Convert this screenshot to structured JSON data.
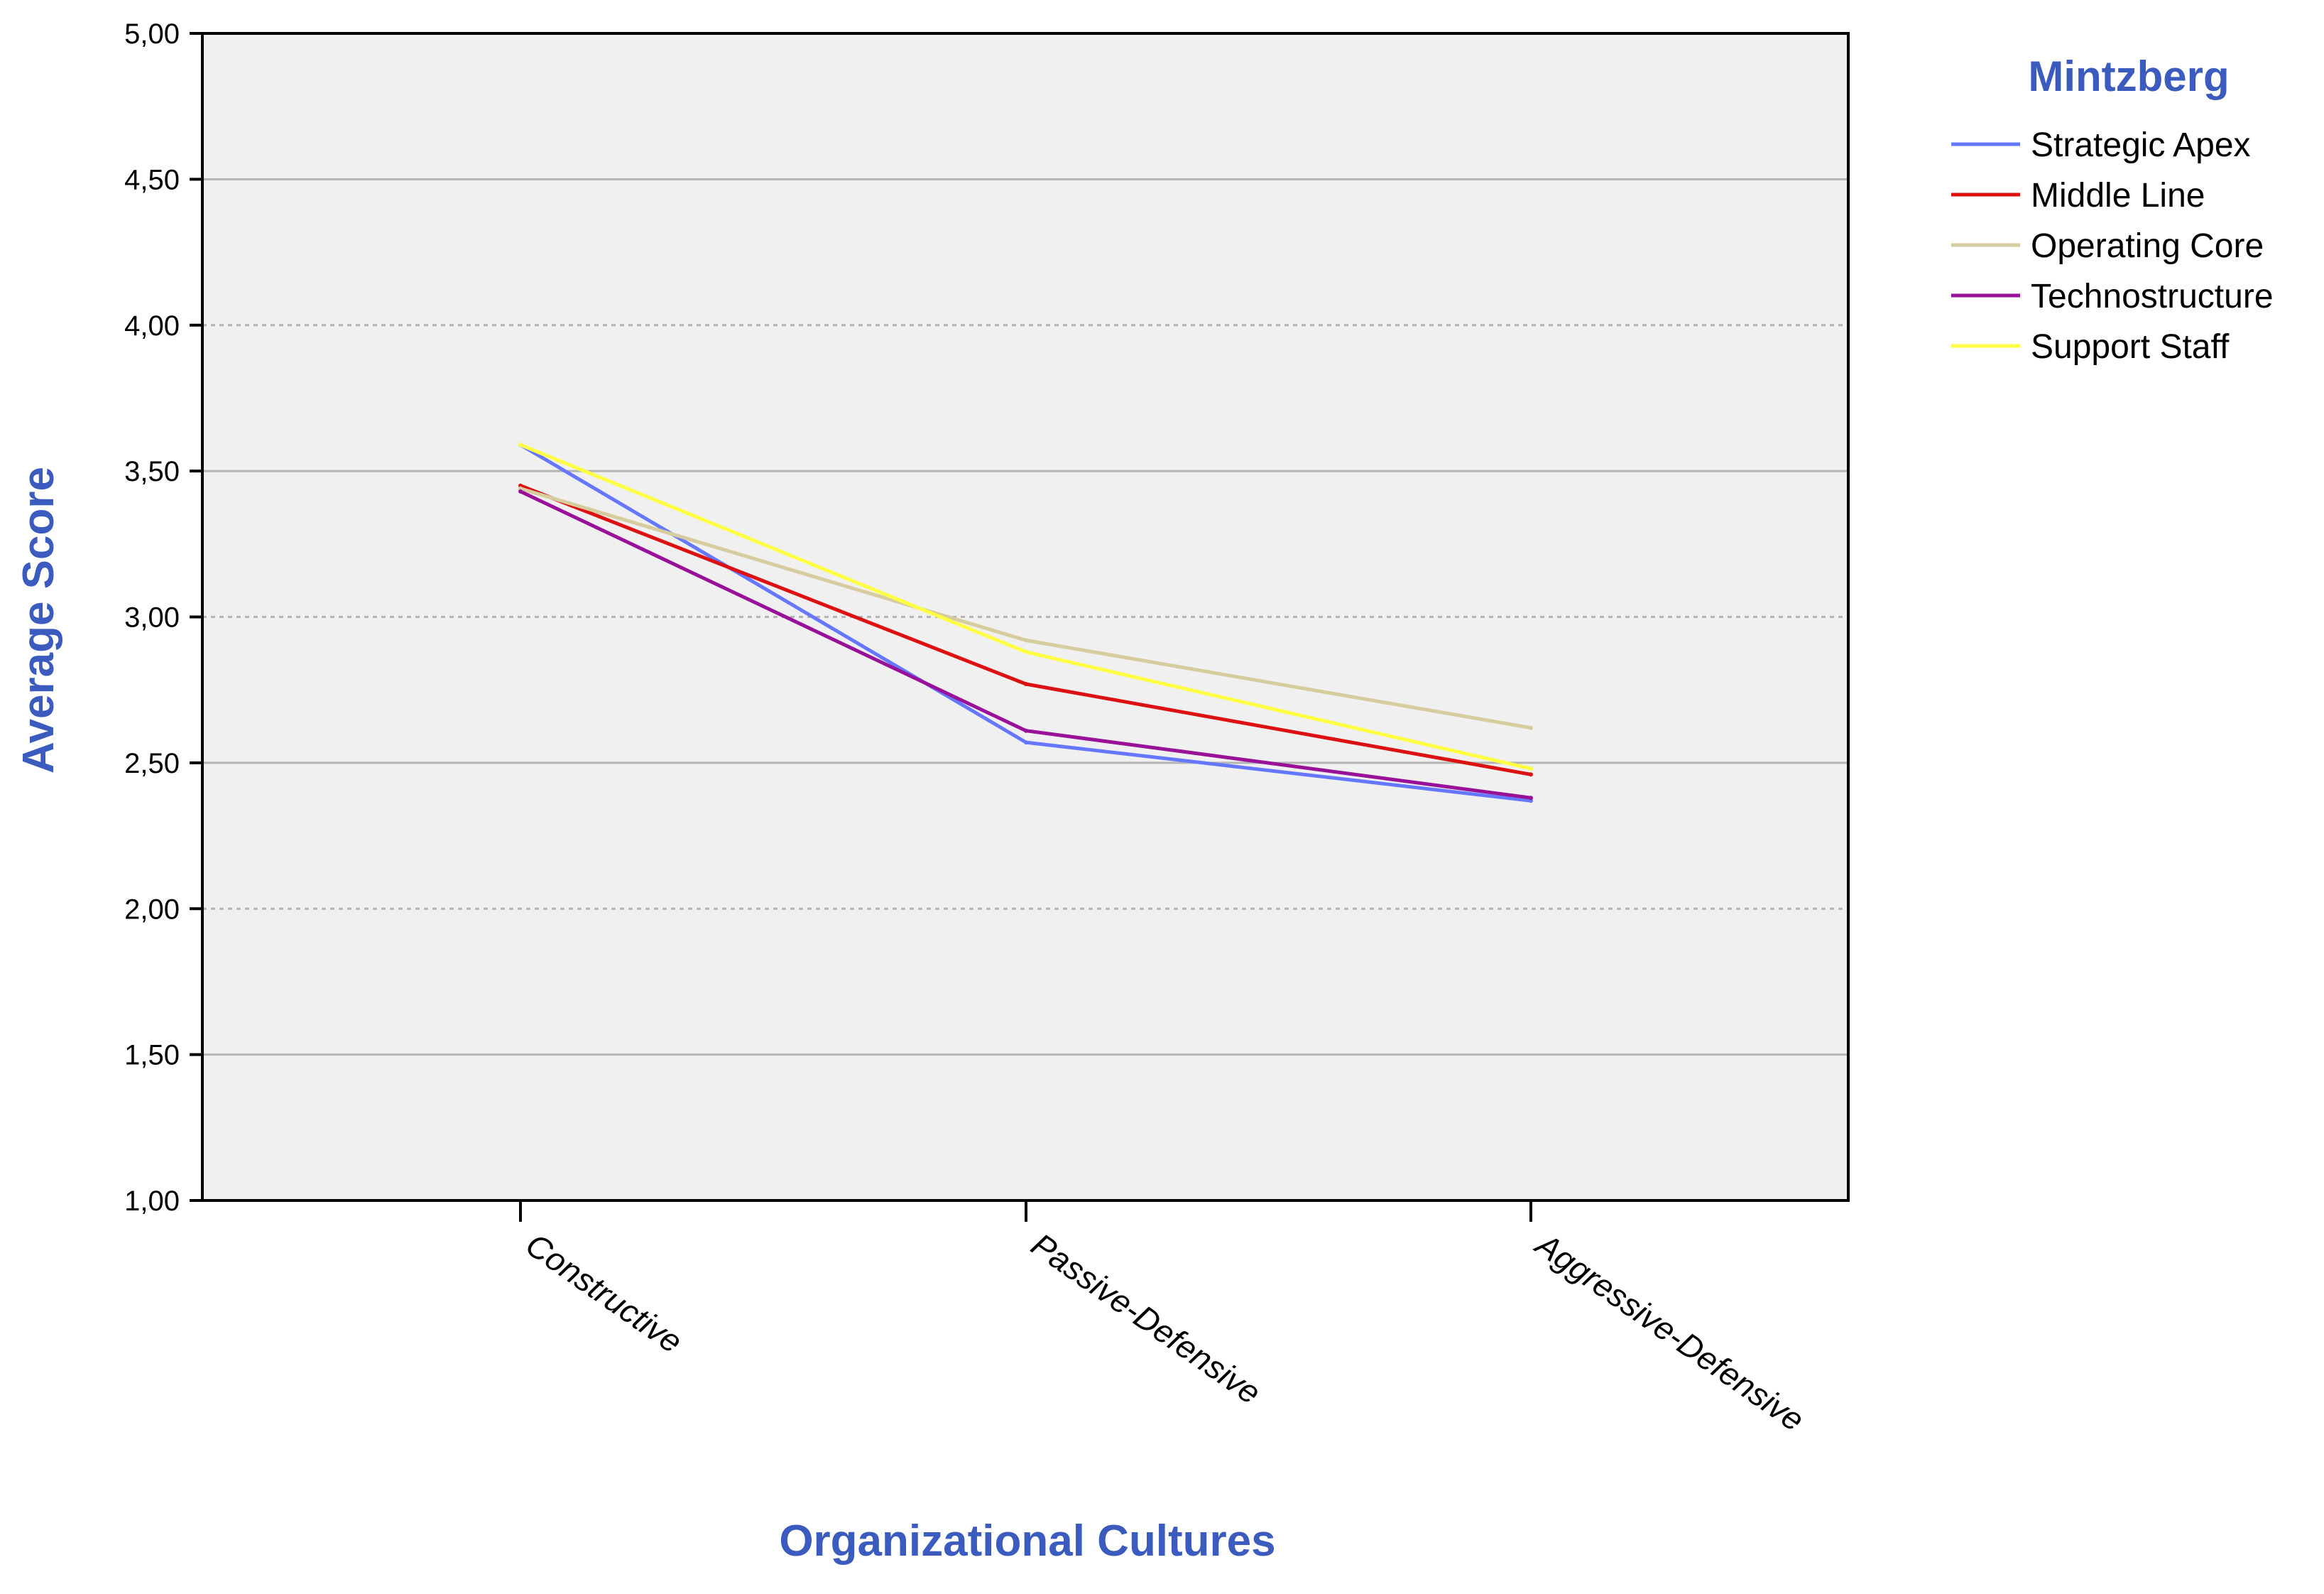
{
  "chart_data": {
    "type": "line",
    "categories": [
      "Constructive",
      "Passive-Defensive",
      "Aggressive-Defensive"
    ],
    "series": [
      {
        "name": "Strategic Apex",
        "color": "#6677ff",
        "values": [
          3.59,
          2.57,
          2.37
        ]
      },
      {
        "name": "Middle Line",
        "color": "#dd1111",
        "values": [
          3.45,
          2.77,
          2.46
        ]
      },
      {
        "name": "Operating Core",
        "color": "#d6cc9e",
        "values": [
          3.44,
          2.92,
          2.62
        ]
      },
      {
        "name": "Technostructure",
        "color": "#991199",
        "values": [
          3.43,
          2.61,
          2.38
        ]
      },
      {
        "name": "Support Staff",
        "color": "#ffff44",
        "values": [
          3.59,
          2.88,
          2.48
        ]
      }
    ],
    "xlabel": "Organizational Cultures",
    "ylabel": "Average Score",
    "ylim": [
      1.0,
      5.0
    ],
    "yticks": [
      "1,00",
      "1,50",
      "2,00",
      "2,50",
      "3,00",
      "3,50",
      "4,00",
      "4,50",
      "5,00"
    ],
    "legend_title": "Mintzberg",
    "legend_position": "top-right",
    "grid": true,
    "colors": {
      "title_color": "#3b5bbf",
      "plot_background": "#f0f0f0",
      "grid_color": "#b4b4b4"
    }
  }
}
